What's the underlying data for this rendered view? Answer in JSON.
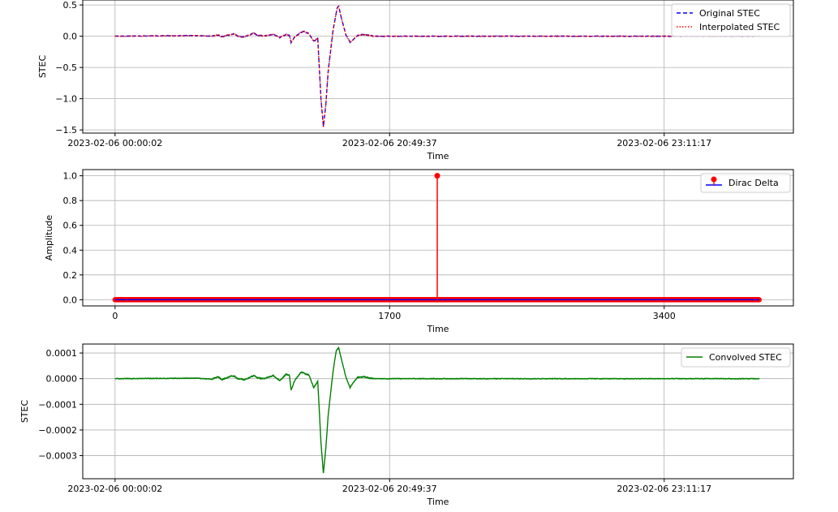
{
  "chart_data": [
    {
      "type": "line",
      "xlabel": "Time",
      "ylabel": "STEC",
      "x_tick_labels": [
        "2023-02-06 00:00:02",
        "2023-02-06 20:49:37",
        "2023-02-06 23:11:17"
      ],
      "x_tick_positions": [
        0,
        1700,
        3400
      ],
      "xlim": [
        -200,
        4200
      ],
      "ylim": [
        -1.55,
        0.58
      ],
      "y_ticks": [
        0.5,
        0.0,
        -0.5,
        -1.0,
        -1.5
      ],
      "y_tick_labels": [
        "0.5",
        "0.0",
        "−0.5",
        "−1.0",
        "−1.5"
      ],
      "grid": true,
      "legend_position": "top-right",
      "series": [
        {
          "name": "Original STEC",
          "color": "#0000ff",
          "style": "dashed"
        },
        {
          "name": "Interpolated STEC",
          "color": "#ff0000",
          "style": "dotted"
        }
      ],
      "shape": {
        "n": 3990,
        "noise": 0.008,
        "keypoints": [
          [
            0,
            0
          ],
          [
            500,
            0.01
          ],
          [
            600,
            0.0
          ],
          [
            640,
            0.02
          ],
          [
            660,
            -0.01
          ],
          [
            720,
            0.03
          ],
          [
            740,
            0.04
          ],
          [
            760,
            0.0
          ],
          [
            800,
            -0.01
          ],
          [
            860,
            0.05
          ],
          [
            880,
            0.02
          ],
          [
            920,
            0.0
          ],
          [
            980,
            0.03
          ],
          [
            1020,
            -0.02
          ],
          [
            1060,
            0.03
          ],
          [
            1080,
            0.01
          ],
          [
            1090,
            -0.1
          ],
          [
            1110,
            -0.02
          ],
          [
            1150,
            0.06
          ],
          [
            1170,
            0.08
          ],
          [
            1200,
            0.04
          ],
          [
            1230,
            -0.08
          ],
          [
            1255,
            -0.03
          ],
          [
            1275,
            -1.0
          ],
          [
            1290,
            -1.45
          ],
          [
            1305,
            -1.1
          ],
          [
            1320,
            -0.55
          ],
          [
            1350,
            0.1
          ],
          [
            1375,
            0.45
          ],
          [
            1385,
            0.48
          ],
          [
            1400,
            0.3
          ],
          [
            1430,
            0.02
          ],
          [
            1455,
            -0.1
          ],
          [
            1475,
            -0.05
          ],
          [
            1500,
            0.01
          ],
          [
            1540,
            0.03
          ],
          [
            1600,
            0.0
          ],
          [
            2200,
            0.0
          ],
          [
            2800,
            0.0
          ],
          [
            3400,
            0.0
          ],
          [
            3990,
            0.0
          ]
        ]
      }
    },
    {
      "type": "stem",
      "xlabel": "Time",
      "ylabel": "Amplitude",
      "x_tick_labels": [
        "0",
        "1700",
        "3400"
      ],
      "x_tick_positions": [
        0,
        1700,
        3400
      ],
      "xlim": [
        -200,
        4200
      ],
      "ylim": [
        -0.05,
        1.05
      ],
      "y_ticks": [
        0.0,
        0.2,
        0.4,
        0.6,
        0.8,
        1.0
      ],
      "y_tick_labels": [
        "0.0",
        "0.2",
        "0.4",
        "0.6",
        "0.8",
        "1.0"
      ],
      "grid": true,
      "legend_position": "top-right",
      "series": [
        {
          "name": "Dirac Delta",
          "color": "#ff0000",
          "baseline_color": "#0000ff",
          "n": 3990,
          "impulse_index": 1995,
          "impulse_value": 1.0
        }
      ]
    },
    {
      "type": "line",
      "xlabel": "Time",
      "ylabel": "STEC",
      "x_tick_labels": [
        "2023-02-06 00:00:02",
        "2023-02-06 20:49:37",
        "2023-02-06 23:11:17"
      ],
      "x_tick_positions": [
        0,
        1700,
        3400
      ],
      "xlim": [
        -200,
        4200
      ],
      "ylim": [
        -0.00039,
        0.000135
      ],
      "y_ticks": [
        0.0001,
        0.0,
        -0.0001,
        -0.0002,
        -0.0003
      ],
      "y_tick_labels": [
        "0.0001",
        "0.0000",
        "−0.0001",
        "−0.0002",
        "−0.0003"
      ],
      "grid": true,
      "legend_position": "top-right",
      "series": [
        {
          "name": "Convolved STEC",
          "color": "#008000",
          "style": "solid"
        }
      ],
      "shape": {
        "n": 3990,
        "noise": 2.4e-06,
        "keypoints": [
          [
            0,
            0
          ],
          [
            500,
            2e-06
          ],
          [
            600,
            -2e-06
          ],
          [
            640,
            8e-06
          ],
          [
            660,
            -4e-06
          ],
          [
            720,
            1e-05
          ],
          [
            740,
            9e-06
          ],
          [
            760,
            0.0
          ],
          [
            800,
            -4e-06
          ],
          [
            860,
            1.2e-05
          ],
          [
            880,
            3e-06
          ],
          [
            920,
            0.0
          ],
          [
            980,
            1.2e-05
          ],
          [
            1020,
            -8e-06
          ],
          [
            1060,
            1.8e-05
          ],
          [
            1080,
            1.2e-05
          ],
          [
            1090,
            -4.5e-05
          ],
          [
            1110,
            -1e-05
          ],
          [
            1150,
            2.5e-05
          ],
          [
            1175,
            2e-05
          ],
          [
            1200,
            1.5e-05
          ],
          [
            1230,
            -3.5e-05
          ],
          [
            1255,
            -1e-05
          ],
          [
            1275,
            -0.00025
          ],
          [
            1290,
            -0.00037
          ],
          [
            1305,
            -0.00027
          ],
          [
            1320,
            -0.00014
          ],
          [
            1350,
            3e-05
          ],
          [
            1370,
            0.00011
          ],
          [
            1385,
            0.00012
          ],
          [
            1400,
            8e-05
          ],
          [
            1430,
            5e-06
          ],
          [
            1455,
            -3.5e-05
          ],
          [
            1475,
            -1.5e-05
          ],
          [
            1500,
            5e-06
          ],
          [
            1540,
            8e-06
          ],
          [
            1600,
            0.0
          ],
          [
            2200,
            0.0
          ],
          [
            2800,
            0.0
          ],
          [
            3400,
            0.0
          ],
          [
            3990,
            0.0
          ]
        ]
      }
    }
  ]
}
